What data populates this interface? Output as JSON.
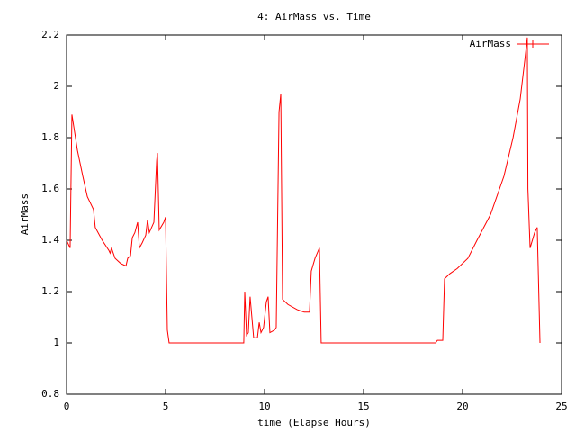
{
  "chart_data": {
    "type": "line",
    "title": "4: AirMass vs. Time",
    "xlabel": "time (Elapse Hours)",
    "ylabel": "AirMass",
    "legend": "top-right",
    "xlim": [
      0,
      25
    ],
    "ylim": [
      0.8,
      2.2
    ],
    "xticks": [
      0,
      5,
      10,
      15,
      20,
      25
    ],
    "yticks": [
      0.8,
      1,
      1.2,
      1.4,
      1.6,
      1.8,
      2,
      2.2
    ],
    "series": [
      {
        "name": "AirMass",
        "color": "#ff0000",
        "x": [
          0,
          0.18,
          0.27,
          0.55,
          0.82,
          1.05,
          1.36,
          1.45,
          1.8,
          2.14,
          2.2,
          2.27,
          2.45,
          2.73,
          3.0,
          3.09,
          3.23,
          3.32,
          3.45,
          3.59,
          3.68,
          3.82,
          4.0,
          4.09,
          4.18,
          4.41,
          4.55,
          4.59,
          4.68,
          4.91,
          5.0,
          5.09,
          5.18,
          8.95,
          9.0,
          9.09,
          9.18,
          9.27,
          9.45,
          9.64,
          9.73,
          9.82,
          9.95,
          10.09,
          10.18,
          10.27,
          10.5,
          10.59,
          10.73,
          10.82,
          10.91,
          11.18,
          11.64,
          12.0,
          12.27,
          12.36,
          12.55,
          12.77,
          12.86,
          18.64,
          18.73,
          19.0,
          19.09,
          19.36,
          19.73,
          20.27,
          20.73,
          21.41,
          22.09,
          22.55,
          22.91,
          23.14,
          23.27,
          23.3,
          23.41,
          23.64,
          23.77,
          23.91
        ],
        "values": [
          1.4,
          1.37,
          1.89,
          1.75,
          1.65,
          1.57,
          1.52,
          1.45,
          1.4,
          1.36,
          1.35,
          1.37,
          1.33,
          1.31,
          1.3,
          1.33,
          1.34,
          1.41,
          1.43,
          1.47,
          1.37,
          1.39,
          1.42,
          1.48,
          1.43,
          1.47,
          1.71,
          1.74,
          1.44,
          1.47,
          1.49,
          1.05,
          1.0,
          1.0,
          1.2,
          1.03,
          1.04,
          1.18,
          1.02,
          1.02,
          1.08,
          1.04,
          1.06,
          1.16,
          1.18,
          1.04,
          1.05,
          1.06,
          1.9,
          1.97,
          1.17,
          1.15,
          1.13,
          1.12,
          1.12,
          1.28,
          1.33,
          1.37,
          1.0,
          1.0,
          1.01,
          1.01,
          1.25,
          1.27,
          1.29,
          1.33,
          1.4,
          1.5,
          1.65,
          1.8,
          1.95,
          2.1,
          2.19,
          1.6,
          1.37,
          1.43,
          1.45,
          1.0
        ]
      }
    ]
  }
}
